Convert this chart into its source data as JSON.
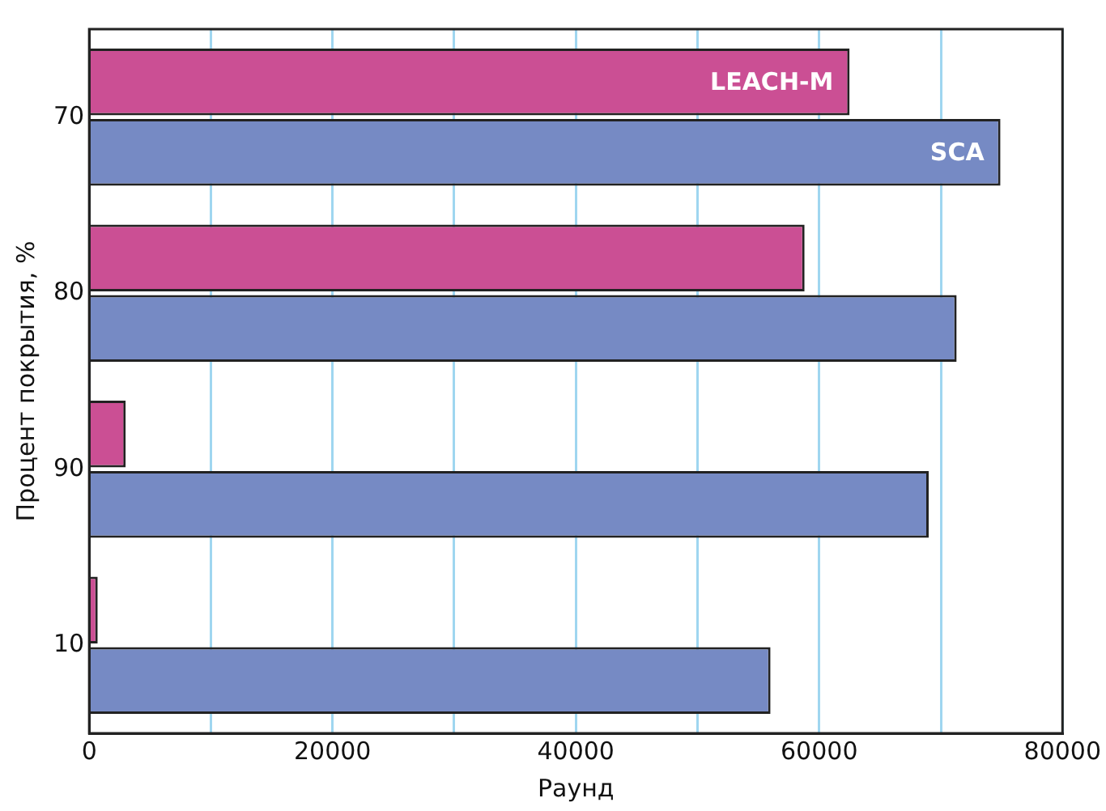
{
  "chart_data": {
    "type": "bar",
    "orientation": "horizontal",
    "xlabel": "Раунд",
    "ylabel": "Процент покрытия, %",
    "categories": [
      "70",
      "80",
      "90",
      "10"
    ],
    "series": [
      {
        "name": "LEACH-M",
        "color": "#cb4f94",
        "values": [
          62500,
          58800,
          3000,
          700
        ]
      },
      {
        "name": "SCA",
        "color": "#768ac4",
        "values": [
          74900,
          71300,
          69000,
          56000
        ]
      }
    ],
    "xlim": [
      0,
      80000
    ],
    "xticks": [
      0,
      {
        "value": 10000,
        "label": null
      },
      20000,
      {
        "value": 30000,
        "label": null
      },
      40000,
      {
        "value": 50000,
        "label": null
      },
      60000,
      {
        "value": 70000,
        "label": null
      },
      80000
    ],
    "grid": "x",
    "legend": false
  }
}
